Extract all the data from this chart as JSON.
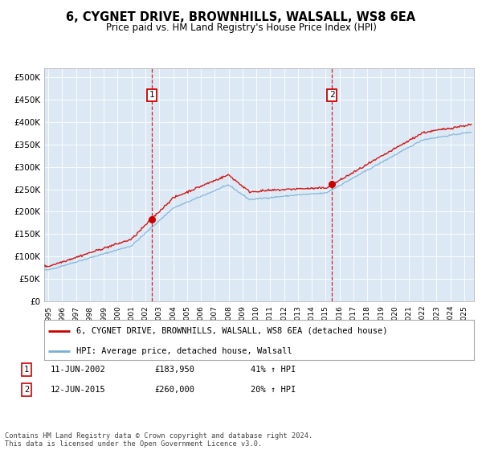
{
  "title1": "6, CYGNET DRIVE, BROWNHILLS, WALSALL, WS8 6EA",
  "title2": "Price paid vs. HM Land Registry's House Price Index (HPI)",
  "legend_line1": "6, CYGNET DRIVE, BROWNHILLS, WALSALL, WS8 6EA (detached house)",
  "legend_line2": "HPI: Average price, detached house, Walsall",
  "sale1_date": "11-JUN-2002",
  "sale1_price": "£183,950",
  "sale1_hpi": "41% ↑ HPI",
  "sale1_year": 2002.45,
  "sale1_value": 183950,
  "sale2_date": "12-JUN-2015",
  "sale2_price": "£260,000",
  "sale2_hpi": "20% ↑ HPI",
  "sale2_year": 2015.45,
  "sale2_value": 260000,
  "footer": "Contains HM Land Registry data © Crown copyright and database right 2024.\nThis data is licensed under the Open Government Licence v3.0.",
  "bg_color": "#dce9f5",
  "red_color": "#cc0000",
  "blue_color": "#7aafd4",
  "ylim": [
    0,
    520000
  ],
  "yticks": [
    0,
    50000,
    100000,
    150000,
    200000,
    250000,
    300000,
    350000,
    400000,
    450000,
    500000
  ],
  "xmin": 1994.7,
  "xmax": 2025.7
}
